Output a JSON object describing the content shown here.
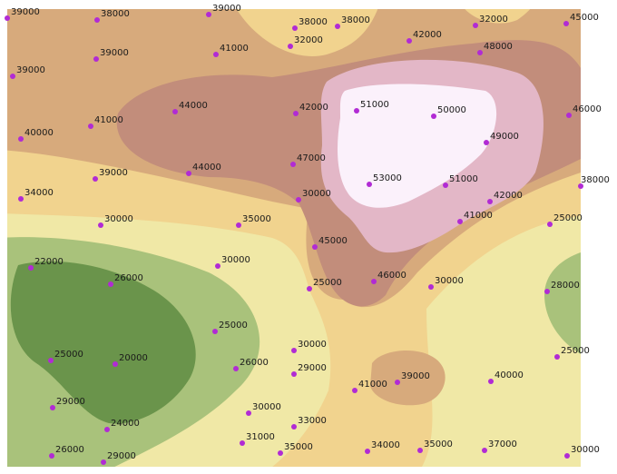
{
  "map": {
    "band_colors": {
      "z_20000": "#6a944b",
      "z_25000": "#a9c27b",
      "z_30000": "#f0e8a6",
      "z_35000": "#f1d38e",
      "z_40000": "#d7aa7c",
      "z_45000": "#c28d7b",
      "z_50000": "#e3b7c7",
      "z_55000": "#fbf1fb"
    },
    "point_color": "#b12bd4",
    "points": [
      {
        "id": "p01",
        "label": "39000"
      },
      {
        "id": "p02",
        "label": "38000"
      },
      {
        "id": "p03",
        "label": "39000"
      },
      {
        "id": "p04",
        "label": "38000"
      },
      {
        "id": "p05",
        "label": "38000"
      },
      {
        "id": "p06",
        "label": "32000"
      },
      {
        "id": "p07",
        "label": "32000"
      },
      {
        "id": "p08",
        "label": "45000"
      },
      {
        "id": "p09",
        "label": "39000"
      },
      {
        "id": "p10",
        "label": "41000"
      },
      {
        "id": "p11",
        "label": "42000"
      },
      {
        "id": "p12",
        "label": "48000"
      },
      {
        "id": "p13",
        "label": "39000"
      },
      {
        "id": "p14",
        "label": "44000"
      },
      {
        "id": "p15",
        "label": "42000"
      },
      {
        "id": "p16",
        "label": "51000"
      },
      {
        "id": "p17",
        "label": "50000"
      },
      {
        "id": "p18",
        "label": "46000"
      },
      {
        "id": "p19",
        "label": "41000"
      },
      {
        "id": "p20",
        "label": "40000"
      },
      {
        "id": "p21",
        "label": "49000"
      },
      {
        "id": "p22",
        "label": "47000"
      },
      {
        "id": "p23",
        "label": "39000"
      },
      {
        "id": "p24",
        "label": "44000"
      },
      {
        "id": "p25",
        "label": "53000"
      },
      {
        "id": "p26",
        "label": "51000"
      },
      {
        "id": "p27",
        "label": "38000"
      },
      {
        "id": "p28",
        "label": "34000"
      },
      {
        "id": "p29",
        "label": "30000"
      },
      {
        "id": "p30",
        "label": "42000"
      },
      {
        "id": "p31",
        "label": "41000"
      },
      {
        "id": "p32",
        "label": "30000"
      },
      {
        "id": "p33",
        "label": "35000"
      },
      {
        "id": "p34",
        "label": "25000"
      },
      {
        "id": "p35",
        "label": "45000"
      },
      {
        "id": "p36",
        "label": "22000"
      },
      {
        "id": "p37",
        "label": "30000"
      },
      {
        "id": "p38",
        "label": "26000"
      },
      {
        "id": "p39",
        "label": "25000"
      },
      {
        "id": "p40",
        "label": "46000"
      },
      {
        "id": "p41",
        "label": "30000"
      },
      {
        "id": "p42",
        "label": "28000"
      },
      {
        "id": "p43",
        "label": "25000"
      },
      {
        "id": "p44",
        "label": "30000"
      },
      {
        "id": "p45",
        "label": "25000"
      },
      {
        "id": "p46",
        "label": "20000"
      },
      {
        "id": "p47",
        "label": "26000"
      },
      {
        "id": "p48",
        "label": "29000"
      },
      {
        "id": "p49",
        "label": "41000"
      },
      {
        "id": "p50",
        "label": "39000"
      },
      {
        "id": "p51",
        "label": "40000"
      },
      {
        "id": "p52",
        "label": "25000"
      },
      {
        "id": "p53",
        "label": "29000"
      },
      {
        "id": "p54",
        "label": "30000"
      },
      {
        "id": "p55",
        "label": "33000"
      },
      {
        "id": "p56",
        "label": "24000"
      },
      {
        "id": "p57",
        "label": "31000"
      },
      {
        "id": "p58",
        "label": "35000"
      },
      {
        "id": "p59",
        "label": "34000"
      },
      {
        "id": "p60",
        "label": "35000"
      },
      {
        "id": "p61",
        "label": "37000"
      },
      {
        "id": "p62",
        "label": "26000"
      },
      {
        "id": "p63",
        "label": "29000"
      },
      {
        "id": "p64",
        "label": "30000"
      }
    ]
  }
}
